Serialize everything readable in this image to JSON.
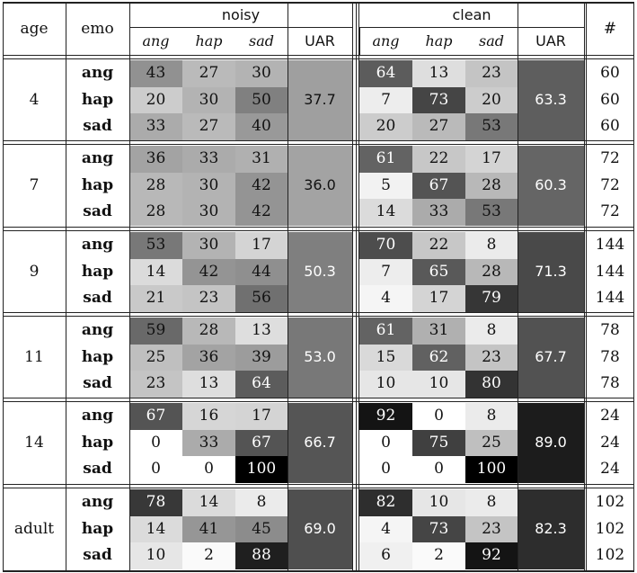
{
  "header": {
    "age": "age",
    "emo": "emo",
    "noisy": "noisy",
    "clean": "clean",
    "count": "#",
    "sub": [
      "ang",
      "hap",
      "sad",
      "UAR"
    ]
  },
  "groups": [
    {
      "age": "4",
      "rows": [
        {
          "emo": "ang",
          "noisy": [
            43,
            27,
            30
          ],
          "clean": [
            64,
            13,
            23
          ],
          "count": "60"
        },
        {
          "emo": "hap",
          "noisy": [
            20,
            30,
            50
          ],
          "clean": [
            7,
            73,
            20
          ],
          "count": "60"
        },
        {
          "emo": "sad",
          "noisy": [
            33,
            27,
            40
          ],
          "clean": [
            20,
            27,
            53
          ],
          "count": "60"
        }
      ],
      "noisy_uar": "37.7",
      "clean_uar": "63.3"
    },
    {
      "age": "7",
      "rows": [
        {
          "emo": "ang",
          "noisy": [
            36,
            33,
            31
          ],
          "clean": [
            61,
            22,
            17
          ],
          "count": "72"
        },
        {
          "emo": "hap",
          "noisy": [
            28,
            30,
            42
          ],
          "clean": [
            5,
            67,
            28
          ],
          "count": "72"
        },
        {
          "emo": "sad",
          "noisy": [
            28,
            30,
            42
          ],
          "clean": [
            14,
            33,
            53
          ],
          "count": "72"
        }
      ],
      "noisy_uar": "36.0",
      "clean_uar": "60.3"
    },
    {
      "age": "9",
      "rows": [
        {
          "emo": "ang",
          "noisy": [
            53,
            30,
            17
          ],
          "clean": [
            70,
            22,
            8
          ],
          "count": "144"
        },
        {
          "emo": "hap",
          "noisy": [
            14,
            42,
            44
          ],
          "clean": [
            7,
            65,
            28
          ],
          "count": "144"
        },
        {
          "emo": "sad",
          "noisy": [
            21,
            23,
            56
          ],
          "clean": [
            4,
            17,
            79
          ],
          "count": "144"
        }
      ],
      "noisy_uar": "50.3",
      "clean_uar": "71.3"
    },
    {
      "age": "11",
      "rows": [
        {
          "emo": "ang",
          "noisy": [
            59,
            28,
            13
          ],
          "clean": [
            61,
            31,
            8
          ],
          "count": "78"
        },
        {
          "emo": "hap",
          "noisy": [
            25,
            36,
            39
          ],
          "clean": [
            15,
            62,
            23
          ],
          "count": "78"
        },
        {
          "emo": "sad",
          "noisy": [
            23,
            13,
            64
          ],
          "clean": [
            10,
            10,
            80
          ],
          "count": "78"
        }
      ],
      "noisy_uar": "53.0",
      "clean_uar": "67.7"
    },
    {
      "age": "14",
      "rows": [
        {
          "emo": "ang",
          "noisy": [
            67,
            16,
            17
          ],
          "clean": [
            92,
            0,
            8
          ],
          "count": "24"
        },
        {
          "emo": "hap",
          "noisy": [
            0,
            33,
            67
          ],
          "clean": [
            0,
            75,
            25
          ],
          "count": "24"
        },
        {
          "emo": "sad",
          "noisy": [
            0,
            0,
            100
          ],
          "clean": [
            0,
            0,
            100
          ],
          "count": "24"
        }
      ],
      "noisy_uar": "66.7",
      "clean_uar": "89.0"
    },
    {
      "age": "adult",
      "rows": [
        {
          "emo": "ang",
          "noisy": [
            78,
            14,
            8
          ],
          "clean": [
            82,
            10,
            8
          ],
          "count": "102"
        },
        {
          "emo": "hap",
          "noisy": [
            14,
            41,
            45
          ],
          "clean": [
            4,
            73,
            23
          ],
          "count": "102"
        },
        {
          "emo": "sad",
          "noisy": [
            10,
            2,
            88
          ],
          "clean": [
            6,
            2,
            92
          ],
          "count": "102"
        }
      ],
      "noisy_uar": "69.0",
      "clean_uar": "82.3"
    }
  ]
}
